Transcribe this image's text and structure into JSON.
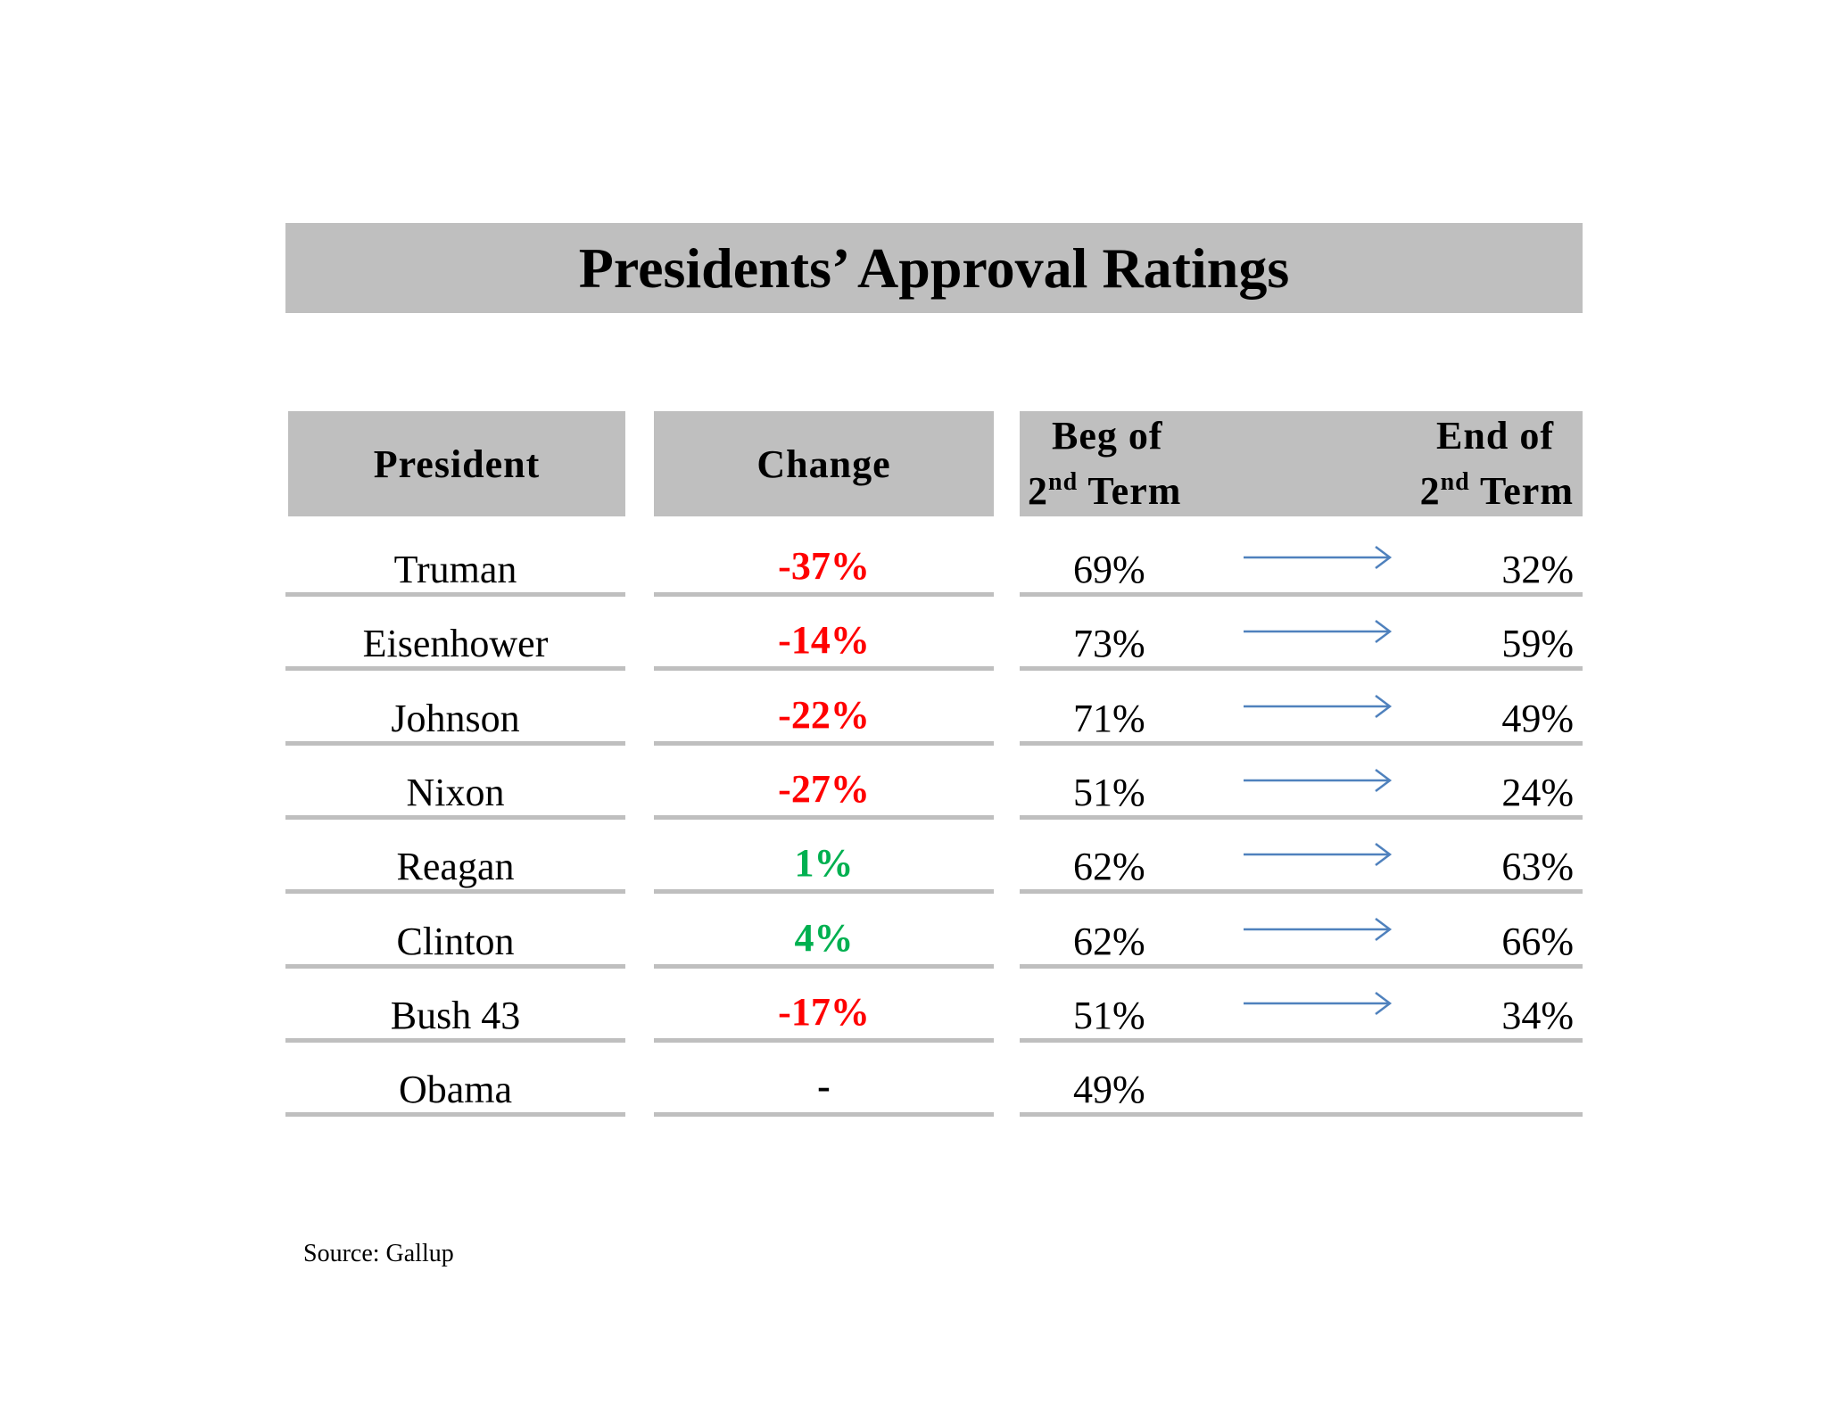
{
  "title": "Presidents’ Approval Ratings",
  "headers": {
    "president": "President",
    "change": "Change",
    "beg_line1": "Beg of",
    "beg_num": "2",
    "beg_sup": "nd",
    "beg_term": "Term",
    "end_line1": "End of",
    "end_num": "2",
    "end_sup": "nd",
    "end_term": "Term"
  },
  "rows": [
    {
      "president": "Truman",
      "change": "-37%",
      "change_sign": "neg",
      "beg": "69%",
      "end": "32%",
      "arrow": true
    },
    {
      "president": "Eisenhower",
      "change": "-14%",
      "change_sign": "neg",
      "beg": "73%",
      "end": "59%",
      "arrow": true
    },
    {
      "president": "Johnson",
      "change": "-22%",
      "change_sign": "neg",
      "beg": "71%",
      "end": "49%",
      "arrow": true
    },
    {
      "president": "Nixon",
      "change": "-27%",
      "change_sign": "neg",
      "beg": "51%",
      "end": "24%",
      "arrow": true
    },
    {
      "president": "Reagan",
      "change": "1%",
      "change_sign": "pos",
      "beg": "62%",
      "end": "63%",
      "arrow": true
    },
    {
      "president": "Clinton",
      "change": "4%",
      "change_sign": "pos",
      "beg": "62%",
      "end": "66%",
      "arrow": true
    },
    {
      "president": "Bush 43",
      "change": "-17%",
      "change_sign": "neg",
      "beg": "51%",
      "end": "34%",
      "arrow": true
    },
    {
      "president": "Obama",
      "change": "-",
      "change_sign": "neutral",
      "beg": "49%",
      "end": "",
      "arrow": false
    }
  ],
  "colors": {
    "negative": "#ff0000",
    "positive": "#00b050",
    "arrow": "#4f81bd",
    "header_fill": "#bfbfbf"
  },
  "icons": {
    "arrow": "right-arrow-icon"
  },
  "source": "Source: Gallup"
}
